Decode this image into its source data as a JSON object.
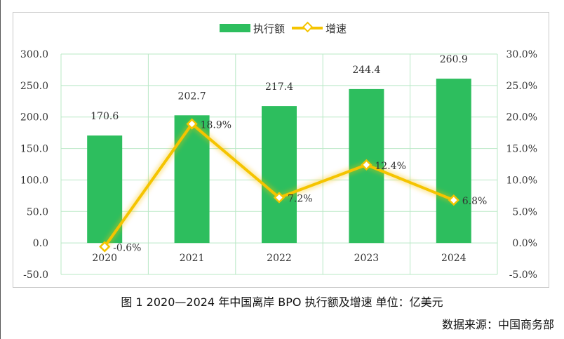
{
  "chart_data": {
    "type": "bar",
    "categories": [
      "2020",
      "2021",
      "2022",
      "2023",
      "2024"
    ],
    "series": [
      {
        "name": "执行额",
        "type": "bar",
        "axis": "left",
        "values": [
          170.6,
          202.7,
          217.4,
          244.4,
          260.9
        ],
        "labels": [
          "170.6",
          "202.7",
          "217.4",
          "244.4",
          "260.9"
        ],
        "color": "#2dbe5e"
      },
      {
        "name": "增速",
        "type": "line",
        "axis": "right",
        "values": [
          -0.6,
          18.9,
          7.2,
          12.4,
          6.8
        ],
        "labels": [
          "-0.6%",
          "18.9%",
          "7.2%",
          "12.4%",
          "6.8%"
        ],
        "color": "#f5c400"
      }
    ],
    "y_left": {
      "min": -50,
      "max": 300,
      "step": 50,
      "ticks": [
        "300.0",
        "250.0",
        "200.0",
        "150.0",
        "100.0",
        "50.0",
        "0.0",
        "-50.0"
      ]
    },
    "y_right": {
      "min": -5,
      "max": 30,
      "step": 5,
      "ticks": [
        "30.0%",
        "25.0%",
        "20.0%",
        "15.0%",
        "10.0%",
        "5.0%",
        "0.0%",
        "-5.0%"
      ]
    },
    "grid": true,
    "legend": "top-center",
    "gridline_color": "#b9e8c6"
  },
  "caption": "图 1 2020—2024 年中国离岸 BPO 执行额及增速 单位：亿美元",
  "source": "数据来源：中国商务部"
}
